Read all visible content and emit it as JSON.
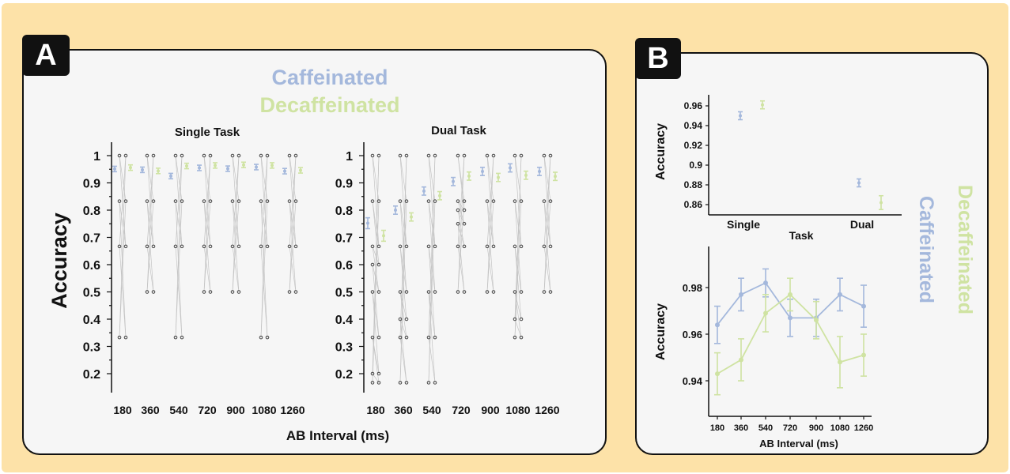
{
  "panel_labels": {
    "a": "A",
    "b": "B"
  },
  "legend": {
    "caffeinated": "Caffeinated",
    "decaffeinated": "Decaffeinated"
  },
  "colors": {
    "caffeinated": "#a4b8dc",
    "decaffeinated": "#cfe3a2",
    "points": "#444444",
    "lines": "#c4c4c4",
    "background": "#fde2a8",
    "panel": "#f6f6f6"
  },
  "chart_data": [
    {
      "type": "scatter",
      "title": "Single Task",
      "xlabel": "AB Interval (ms)",
      "ylabel": "Accuracy",
      "categories": [
        "180",
        "360",
        "540",
        "720",
        "900",
        "1080",
        "1260"
      ],
      "yticks": [
        "1",
        "0.9",
        "0.8",
        "0.7",
        "0.6",
        "0.5",
        "0.4",
        "0.3",
        "0.2"
      ],
      "ylim": [
        0.15,
        1.02
      ],
      "series": [
        {
          "name": "Caffeinated",
          "values": [
            0.951,
            0.948,
            0.925,
            0.955,
            0.952,
            0.958,
            0.943
          ],
          "err": [
            0.01,
            0.01,
            0.01,
            0.01,
            0.01,
            0.01,
            0.01
          ]
        },
        {
          "name": "Decaffeinated",
          "values": [
            0.956,
            0.944,
            0.962,
            0.964,
            0.966,
            0.964,
            0.946
          ],
          "err": [
            0.01,
            0.01,
            0.01,
            0.01,
            0.01,
            0.01,
            0.01
          ]
        }
      ],
      "points": [
        [
          1,
          0.833,
          0.667,
          0.333
        ],
        [
          1,
          0.833,
          0.667,
          0.5
        ],
        [
          1,
          0.833,
          0.667,
          0.333
        ],
        [
          1,
          0.833,
          0.667,
          0.5
        ],
        [
          1,
          0.833,
          0.667,
          0.5
        ],
        [
          1,
          0.833,
          0.667,
          0.333
        ],
        [
          1,
          0.833,
          0.667,
          0.5
        ]
      ]
    },
    {
      "type": "scatter",
      "title": "Dual Task",
      "xlabel": "AB Interval (ms)",
      "ylabel": "Accuracy",
      "categories": [
        "180",
        "360",
        "540",
        "720",
        "900",
        "1080",
        "1260"
      ],
      "yticks": [
        "1",
        "0.9",
        "0.8",
        "0.7",
        "0.6",
        "0.5",
        "0.4",
        "0.3",
        "0.2"
      ],
      "ylim": [
        0.15,
        1.02
      ],
      "series": [
        {
          "name": "Caffeinated",
          "values": [
            0.752,
            0.8,
            0.87,
            0.905,
            0.942,
            0.955,
            0.942
          ],
          "err": [
            0.02,
            0.015,
            0.015,
            0.015,
            0.015,
            0.015,
            0.015
          ]
        },
        {
          "name": "Decaffeinated",
          "values": [
            0.706,
            0.775,
            0.853,
            0.925,
            0.92,
            0.928,
            0.924
          ],
          "err": [
            0.02,
            0.015,
            0.015,
            0.015,
            0.015,
            0.015,
            0.015
          ]
        }
      ],
      "points": [
        [
          1,
          0.833,
          0.667,
          0.6,
          0.5,
          0.333,
          0.2,
          0.167
        ],
        [
          1,
          0.833,
          0.667,
          0.5,
          0.4,
          0.333,
          0.167
        ],
        [
          1,
          0.833,
          0.667,
          0.5,
          0.333,
          0.167
        ],
        [
          1,
          0.833,
          0.8,
          0.75,
          0.667,
          0.5
        ],
        [
          1,
          0.833,
          0.667,
          0.5
        ],
        [
          1,
          0.833,
          0.667,
          0.5,
          0.4,
          0.333
        ],
        [
          1,
          0.833,
          0.667,
          0.5
        ]
      ]
    },
    {
      "type": "scatter",
      "title": "",
      "xlabel": "Task",
      "ylabel": "Accuracy",
      "categories": [
        "Single",
        "Dual"
      ],
      "yticks": [
        "0.96",
        "0.94",
        "0.92",
        "0.9",
        "0.88",
        "0.86"
      ],
      "ylim": [
        0.85,
        0.97
      ],
      "series": [
        {
          "name": "Caffeinated",
          "values": [
            0.95,
            0.882
          ],
          "err": [
            0.004,
            0.004
          ]
        },
        {
          "name": "Decaffeinated",
          "values": [
            0.961,
            0.862
          ],
          "err": [
            0.004,
            0.007
          ]
        }
      ]
    },
    {
      "type": "line",
      "title": "",
      "xlabel": "AB Interval (ms)",
      "ylabel": "Accuracy",
      "categories": [
        "180",
        "360",
        "540",
        "720",
        "900",
        "1080",
        "1260"
      ],
      "yticks": [
        "0.98",
        "0.96",
        "0.94"
      ],
      "ylim": [
        0.928,
        0.995
      ],
      "series": [
        {
          "name": "Caffeinated",
          "values": [
            0.964,
            0.977,
            0.982,
            0.967,
            0.967,
            0.977,
            0.972
          ],
          "err": [
            0.008,
            0.007,
            0.006,
            0.008,
            0.008,
            0.007,
            0.009
          ]
        },
        {
          "name": "Decaffeinated",
          "values": [
            0.943,
            0.949,
            0.969,
            0.977,
            0.966,
            0.948,
            0.951
          ],
          "err": [
            0.009,
            0.009,
            0.008,
            0.007,
            0.008,
            0.011,
            0.009
          ]
        }
      ]
    }
  ]
}
